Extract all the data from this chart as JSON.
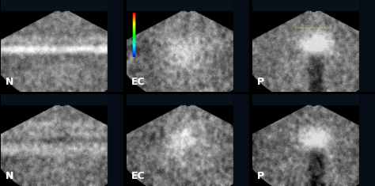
{
  "layout": {
    "rows": 2,
    "cols": 3
  },
  "labels": [
    [
      "N",
      "EC",
      "P"
    ],
    [
      "N",
      "EC",
      "P"
    ]
  ],
  "label_fontsize": 9,
  "label_color": "white",
  "label_fontweight": "bold",
  "background_color": "#000000",
  "figsize": [
    4.74,
    2.35
  ],
  "dpi": 100,
  "hspace": 0.03,
  "wspace": 0.03
}
